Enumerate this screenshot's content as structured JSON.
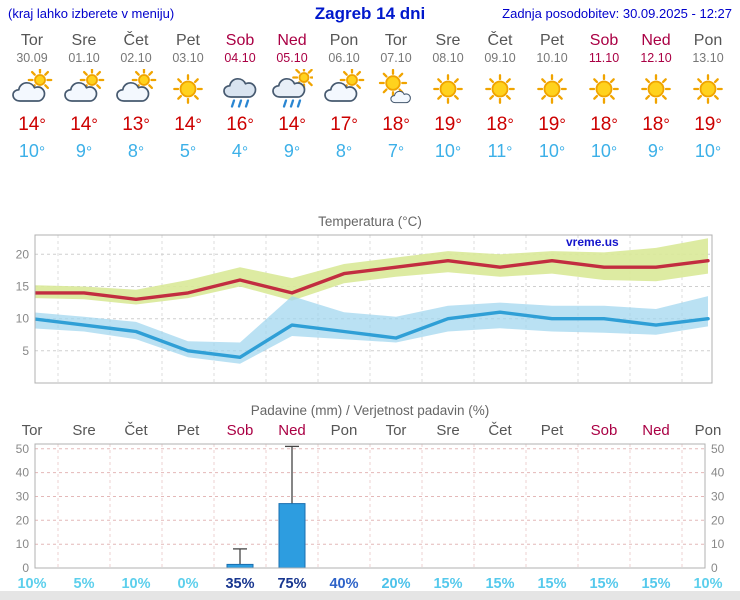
{
  "header": {
    "hint": "(kraj lahko izberete v meniju)",
    "title": "Zagreb 14 dni",
    "updated": "Zadnja posodobitev: 30.09.2025 - 12:27"
  },
  "units": {
    "degree": "°"
  },
  "colors": {
    "header_blue": "#0000cc",
    "weekday_text": "#555555",
    "weekend_text": "#aa0044",
    "tmax_text": "#cc0000",
    "tmin_text": "#3cb0e8",
    "bar_fill": "#2d9de0",
    "bar_stroke": "#1a6fb0",
    "grid_gray": "#cfcfcf",
    "grid_pink": "#e4b8b8"
  },
  "days": [
    {
      "name": "Tor",
      "date": "30.09",
      "weekend": false,
      "icon": "cloud-sun",
      "tmax": 14,
      "tmin": 10
    },
    {
      "name": "Sre",
      "date": "01.10",
      "weekend": false,
      "icon": "cloud-sun",
      "tmax": 14,
      "tmin": 9
    },
    {
      "name": "Čet",
      "date": "02.10",
      "weekend": false,
      "icon": "cloud-sun",
      "tmax": 13,
      "tmin": 8
    },
    {
      "name": "Pet",
      "date": "03.10",
      "weekend": false,
      "icon": "sun",
      "tmax": 14,
      "tmin": 5
    },
    {
      "name": "Sob",
      "date": "04.10",
      "weekend": true,
      "icon": "rain",
      "tmax": 16,
      "tmin": 4
    },
    {
      "name": "Ned",
      "date": "05.10",
      "weekend": true,
      "icon": "rain-sun",
      "tmax": 14,
      "tmin": 9
    },
    {
      "name": "Pon",
      "date": "06.10",
      "weekend": false,
      "icon": "cloud-sun",
      "tmax": 17,
      "tmin": 8
    },
    {
      "name": "Tor",
      "date": "07.10",
      "weekend": false,
      "icon": "sun-cloud",
      "tmax": 18,
      "tmin": 7
    },
    {
      "name": "Sre",
      "date": "08.10",
      "weekend": false,
      "icon": "sun",
      "tmax": 19,
      "tmin": 10
    },
    {
      "name": "Čet",
      "date": "09.10",
      "weekend": false,
      "icon": "sun",
      "tmax": 18,
      "tmin": 11
    },
    {
      "name": "Pet",
      "date": "10.10",
      "weekend": false,
      "icon": "sun",
      "tmax": 19,
      "tmin": 10
    },
    {
      "name": "Sob",
      "date": "11.10",
      "weekend": true,
      "icon": "sun",
      "tmax": 18,
      "tmin": 10
    },
    {
      "name": "Ned",
      "date": "12.10",
      "weekend": true,
      "icon": "sun",
      "tmax": 18,
      "tmin": 9
    },
    {
      "name": "Pon",
      "date": "13.10",
      "weekend": false,
      "icon": "sun",
      "tmax": 19,
      "tmin": 10
    }
  ],
  "chart_data": [
    {
      "type": "line",
      "title": "Temperatura (°C)",
      "x": [
        "Tor 30.09",
        "Sre 01.10",
        "Čet 02.10",
        "Pet 03.10",
        "Sob 04.10",
        "Ned 05.10",
        "Pon 06.10",
        "Tor 07.10",
        "Sre 08.10",
        "Čet 09.10",
        "Pet 10.10",
        "Sob 11.10",
        "Ned 12.10",
        "Pon 13.10"
      ],
      "ylim": [
        0,
        23
      ],
      "yticks": [
        5,
        10,
        15,
        20
      ],
      "grid": true,
      "legend": "none",
      "watermark": "vreme.us",
      "series": [
        {
          "name": "max-temp",
          "color": "#c22d40",
          "values": [
            14,
            14,
            13,
            14,
            16,
            14,
            17,
            18,
            19,
            18,
            19,
            18,
            18,
            19
          ]
        },
        {
          "name": "min-temp",
          "color": "#2f9fd6",
          "values": [
            10,
            9,
            8,
            5,
            4,
            9,
            8,
            7,
            10,
            11,
            10,
            10,
            9,
            10
          ]
        },
        {
          "name": "max-temp-range-upper",
          "color": "#d9e998",
          "values": [
            15.2,
            15,
            14.5,
            16,
            18,
            16.3,
            18.5,
            19.5,
            20.5,
            20,
            20.5,
            20.3,
            21,
            22.5
          ]
        },
        {
          "name": "max-temp-range-lower",
          "color": "#d9e998",
          "values": [
            13.2,
            13,
            12.2,
            13.2,
            15,
            12.8,
            15.5,
            16.5,
            17.2,
            16.5,
            17,
            16,
            15.8,
            17
          ]
        },
        {
          "name": "min-temp-range-upper",
          "color": "#9fd6ef",
          "values": [
            11,
            10.3,
            9.5,
            6.5,
            6.3,
            13.5,
            11,
            10.3,
            12,
            12.5,
            12,
            12,
            11.5,
            13.5
          ]
        },
        {
          "name": "min-temp-range-lower",
          "color": "#9fd6ef",
          "values": [
            8.5,
            8,
            6.8,
            4,
            3,
            7.3,
            6.8,
            6.3,
            8,
            8.5,
            8,
            7.8,
            7.5,
            8.8
          ]
        }
      ]
    },
    {
      "type": "bar",
      "title": "Padavine (mm) / Verjetnost padavin (%)",
      "categories": [
        "Tor",
        "Sre",
        "Čet",
        "Pet",
        "Sob",
        "Ned",
        "Pon",
        "Tor",
        "Sre",
        "Čet",
        "Pet",
        "Sob",
        "Ned",
        "Pon"
      ],
      "weekend_indices": [
        4,
        5,
        11,
        12
      ],
      "ylim": [
        0,
        52
      ],
      "yticks": [
        0,
        10,
        20,
        30,
        40,
        50
      ],
      "grid": true,
      "precip_mm": [
        0,
        0,
        0,
        0,
        1.5,
        27,
        0,
        0,
        0,
        0,
        0,
        0,
        0,
        0
      ],
      "precip_max_mm": [
        0,
        0,
        0,
        0,
        8,
        51,
        0,
        0,
        0,
        0,
        0,
        0,
        0,
        0
      ],
      "probabilities": [
        {
          "label": "10%",
          "color": "#5ccfec"
        },
        {
          "label": "5%",
          "color": "#5ccfec"
        },
        {
          "label": "10%",
          "color": "#5ccfec"
        },
        {
          "label": "0%",
          "color": "#5ccfec"
        },
        {
          "label": "35%",
          "color": "#18368f"
        },
        {
          "label": "75%",
          "color": "#18368f"
        },
        {
          "label": "40%",
          "color": "#2e63c8"
        },
        {
          "label": "20%",
          "color": "#4cc2ea"
        },
        {
          "label": "15%",
          "color": "#55c9ec"
        },
        {
          "label": "15%",
          "color": "#55c9ec"
        },
        {
          "label": "15%",
          "color": "#55c9ec"
        },
        {
          "label": "15%",
          "color": "#55c9ec"
        },
        {
          "label": "15%",
          "color": "#55c9ec"
        },
        {
          "label": "10%",
          "color": "#5ccfec"
        }
      ]
    }
  ]
}
